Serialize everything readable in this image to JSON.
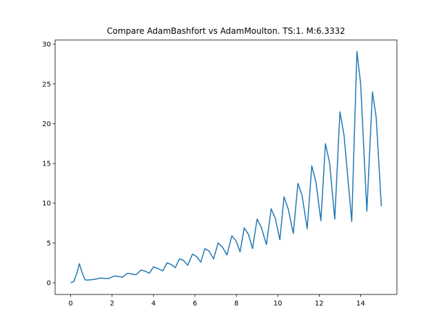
{
  "chart_data": {
    "type": "line",
    "title": "Compare AdamBashfort vs AdamMoulton. TS:1. M:6.3332",
    "x": [
      0,
      0.15,
      0.3,
      0.42,
      0.55,
      0.7,
      0.9,
      1.2,
      1.45,
      1.65,
      1.85,
      2.1,
      2.3,
      2.5,
      2.75,
      2.95,
      3.15,
      3.4,
      3.6,
      3.8,
      4.0,
      4.2,
      4.45,
      4.65,
      4.85,
      5.05,
      5.25,
      5.45,
      5.65,
      5.88,
      6.08,
      6.28,
      6.48,
      6.68,
      6.9,
      7.12,
      7.32,
      7.55,
      7.78,
      7.98,
      8.18,
      8.38,
      8.58,
      8.78,
      9.0,
      9.2,
      9.45,
      9.68,
      9.88,
      10.1,
      10.3,
      10.5,
      10.75,
      10.97,
      11.17,
      11.42,
      11.64,
      11.84,
      12.08,
      12.3,
      12.5,
      12.75,
      13.0,
      13.2,
      13.57,
      13.82,
      14.0,
      14.3,
      14.57,
      14.75,
      15.0
    ],
    "series": [
      {
        "color": "#1f77b4",
        "values": [
          0,
          0.15,
          1.2,
          2.4,
          1.3,
          0.35,
          0.35,
          0.45,
          0.6,
          0.55,
          0.55,
          0.85,
          0.8,
          0.7,
          1.2,
          1.1,
          1.0,
          1.6,
          1.45,
          1.2,
          2.0,
          1.8,
          1.5,
          2.5,
          2.3,
          1.9,
          3.0,
          2.8,
          2.2,
          3.6,
          3.3,
          2.6,
          4.3,
          4.0,
          3.0,
          5.0,
          4.5,
          3.5,
          5.9,
          5.3,
          3.9,
          6.9,
          6.1,
          4.3,
          8.0,
          7.0,
          4.8,
          9.3,
          8.1,
          5.4,
          10.8,
          9.3,
          6.2,
          12.5,
          11.0,
          6.8,
          14.7,
          12.7,
          7.8,
          17.5,
          15.1,
          8.0,
          21.5,
          18.5,
          7.7,
          29.1,
          25.0,
          9.0,
          24.0,
          20.8,
          9.6
        ]
      }
    ],
    "xlim": [
      -0.75,
      15.75
    ],
    "ylim": [
      -1.47,
      30.53
    ],
    "xticks": [
      0,
      2,
      4,
      6,
      8,
      10,
      12,
      14
    ],
    "yticks": [
      0,
      5,
      10,
      15,
      20,
      25,
      30
    ]
  }
}
